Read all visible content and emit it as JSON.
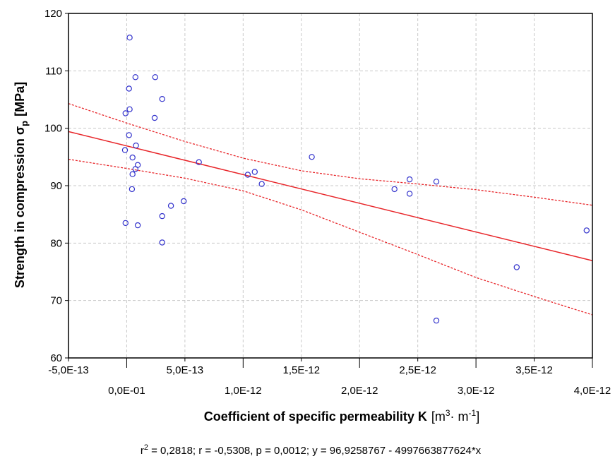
{
  "chart_data": {
    "type": "scatter",
    "ylabel": "Strength in compression σ",
    "ylabel_sub": "p",
    "ylabel_unit": "[MPa]",
    "xlabel": "Coefficient of specific permeability K",
    "xlabel_unit": "[m",
    "xlabel_unit_sup": "3",
    "xlabel_unit_rest": "· m",
    "xlabel_unit_sup2": "-1",
    "xlabel_unit_end": "]",
    "stats_prefix": "r",
    "stats_sup": "2",
    "stats_text": " = 0,2818; r = -0,5308, p = 0,0012; y = 96,9258767 - 4997663877624*x",
    "xlim": [
      -5e-13,
      4e-12
    ],
    "ylim": [
      60,
      120
    ],
    "x_ticks_upper": [
      {
        "value": -5e-13,
        "label": "-5,0E-13"
      },
      {
        "value": 5e-13,
        "label": "5,0E-13"
      },
      {
        "value": 1.5e-12,
        "label": "1,5E-12"
      },
      {
        "value": 2.5e-12,
        "label": "2,5E-12"
      },
      {
        "value": 3.5e-12,
        "label": "3,5E-12"
      }
    ],
    "x_ticks_lower": [
      {
        "value": 0,
        "label": "0,0E-01"
      },
      {
        "value": 1e-12,
        "label": "1,0E-12"
      },
      {
        "value": 2e-12,
        "label": "2,0E-12"
      },
      {
        "value": 3e-12,
        "label": "3,0E-12"
      },
      {
        "value": 4e-12,
        "label": "4,0E-12"
      }
    ],
    "y_ticks": [
      {
        "value": 60,
        "label": "60"
      },
      {
        "value": 70,
        "label": "70"
      },
      {
        "value": 80,
        "label": "80"
      },
      {
        "value": 90,
        "label": "90"
      },
      {
        "value": 100,
        "label": "100"
      },
      {
        "value": 110,
        "label": "110"
      },
      {
        "value": 120,
        "label": "120"
      }
    ],
    "grid": true,
    "colors": {
      "points": "#3333cc",
      "fit": "#e8262a",
      "grid": "#c8c8c8"
    },
    "regression": {
      "intercept": 96.9258767,
      "slope": -4997663877624
    },
    "confidence_upper": [
      {
        "x": -5e-13,
        "y": 104.3
      },
      {
        "x": 0,
        "y": 100.9
      },
      {
        "x": 5e-13,
        "y": 97.7
      },
      {
        "x": 1e-12,
        "y": 94.8
      },
      {
        "x": 1.5e-12,
        "y": 92.6
      },
      {
        "x": 2e-12,
        "y": 91.2
      },
      {
        "x": 2.5e-12,
        "y": 90.3
      },
      {
        "x": 3e-12,
        "y": 89.3
      },
      {
        "x": 3.5e-12,
        "y": 88.0
      },
      {
        "x": 4e-12,
        "y": 86.6
      }
    ],
    "confidence_lower": [
      {
        "x": -5e-13,
        "y": 94.6
      },
      {
        "x": 0,
        "y": 93.0
      },
      {
        "x": 5e-13,
        "y": 91.3
      },
      {
        "x": 1e-12,
        "y": 89.1
      },
      {
        "x": 1.5e-12,
        "y": 85.8
      },
      {
        "x": 2e-12,
        "y": 81.9
      },
      {
        "x": 2.5e-12,
        "y": 78.0
      },
      {
        "x": 3e-12,
        "y": 74.0
      },
      {
        "x": 3.5e-12,
        "y": 70.7
      },
      {
        "x": 4e-12,
        "y": 67.5
      }
    ],
    "points": [
      {
        "x": 2.5e-14,
        "y": 115.8
      },
      {
        "x": 7.5e-14,
        "y": 108.9
      },
      {
        "x": 2.45e-13,
        "y": 108.9
      },
      {
        "x": 2e-14,
        "y": 106.9
      },
      {
        "x": 3.05e-13,
        "y": 105.1
      },
      {
        "x": 2.5e-14,
        "y": 103.3
      },
      {
        "x": -1e-14,
        "y": 102.6
      },
      {
        "x": 2.4e-13,
        "y": 101.8
      },
      {
        "x": 2e-14,
        "y": 98.8
      },
      {
        "x": 8e-14,
        "y": 97.0
      },
      {
        "x": -1.5e-14,
        "y": 96.2
      },
      {
        "x": 5e-14,
        "y": 94.9
      },
      {
        "x": 9.5e-14,
        "y": 93.6
      },
      {
        "x": 7.5e-14,
        "y": 92.9
      },
      {
        "x": 5e-14,
        "y": 92.0
      },
      {
        "x": 4.5e-14,
        "y": 89.4
      },
      {
        "x": 6.2e-13,
        "y": 94.1
      },
      {
        "x": 1.04e-12,
        "y": 91.9
      },
      {
        "x": 1.1e-12,
        "y": 92.4
      },
      {
        "x": 1.16e-12,
        "y": 90.3
      },
      {
        "x": 1.59e-12,
        "y": 95.0
      },
      {
        "x": 2.3e-12,
        "y": 89.4
      },
      {
        "x": 2.43e-12,
        "y": 91.1
      },
      {
        "x": 2.43e-12,
        "y": 88.6
      },
      {
        "x": 2.66e-12,
        "y": 90.7
      },
      {
        "x": 3.35e-12,
        "y": 75.8
      },
      {
        "x": 3.95e-12,
        "y": 82.2
      },
      {
        "x": 2.66e-12,
        "y": 66.5
      },
      {
        "x": -1e-14,
        "y": 83.5
      },
      {
        "x": 9.5e-14,
        "y": 83.1
      },
      {
        "x": 3.05e-13,
        "y": 84.7
      },
      {
        "x": 3.05e-13,
        "y": 80.1
      },
      {
        "x": 3.8e-13,
        "y": 86.5
      },
      {
        "x": 4.9e-13,
        "y": 87.3
      }
    ]
  }
}
